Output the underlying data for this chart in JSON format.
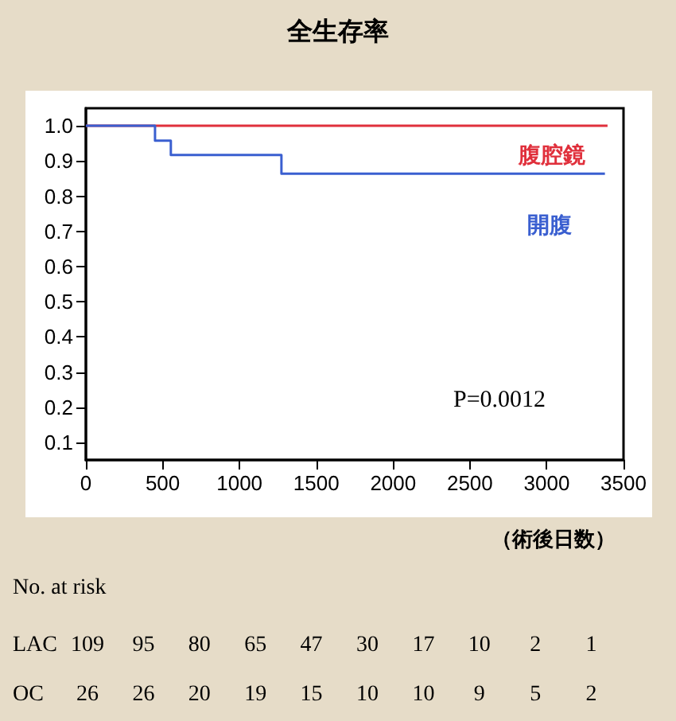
{
  "chart_data": {
    "type": "step",
    "title": "全生存率",
    "xlabel": "（術後日数）",
    "series": [
      {
        "name": "腹腔鏡",
        "color": "#e0303c",
        "x": [
          0,
          3396
        ],
        "values": [
          1,
          1
        ]
      },
      {
        "name": "開腹",
        "color": "#3a5fd0",
        "x": [
          0,
          450,
          553,
          1273,
          3379
        ],
        "values": [
          1,
          0.958,
          0.917,
          0.864,
          0.864
        ]
      }
    ],
    "xlim": [
      0,
      3500
    ],
    "xticks": [
      0,
      500,
      1000,
      1500,
      2000,
      2500,
      3000,
      3500
    ],
    "ylim": [
      0.05,
      1.05
    ],
    "yticks": [
      0.1,
      0.2,
      0.3,
      0.4,
      0.5,
      0.6,
      0.7,
      0.8,
      0.9,
      {
        "value": 1,
        "label": "1.0"
      }
    ],
    "grid": false,
    "legend": false,
    "marker": "none",
    "line_style": "solid",
    "annotations": [
      "P=0.0012",
      "No. at risk",
      "LAC 109 95 80 65 47 30 17 10 2 1",
      "OC 26 26 20 19 15 10 10 9 5 2"
    ]
  }
}
